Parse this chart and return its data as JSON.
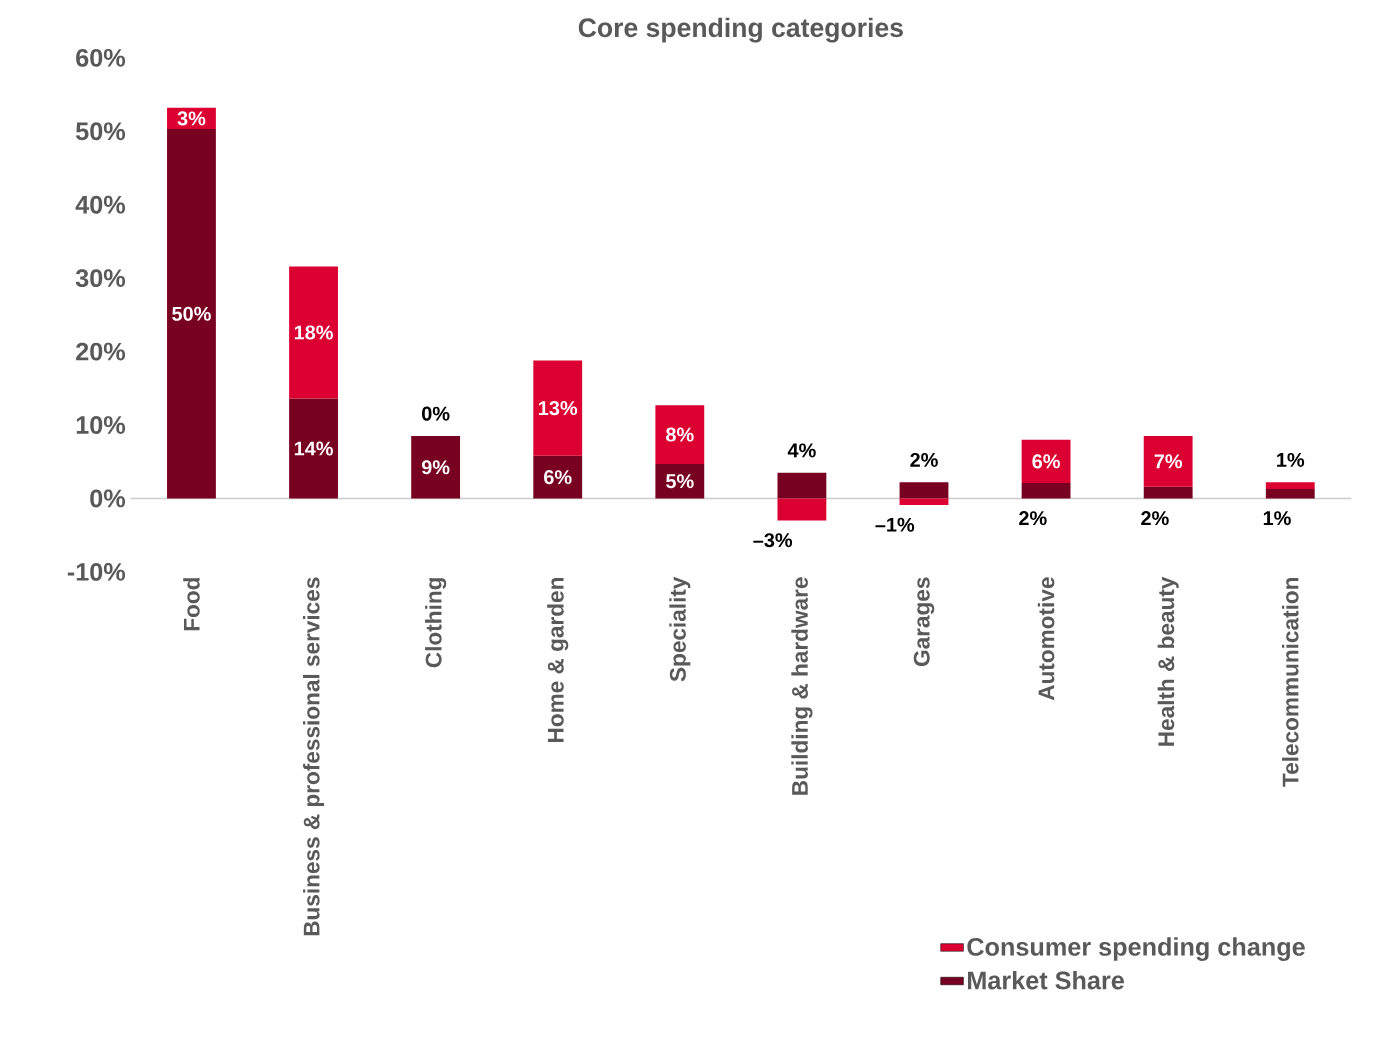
{
  "chart_data": {
    "type": "bar",
    "stacked": true,
    "title": "Core spending categories",
    "categories": [
      "Food",
      "Business & professional services",
      "Clothing",
      "Home & garden",
      "Speciality",
      "Building & hardware",
      "Garages",
      "Automotive",
      "Health & beauty",
      "Telecommunication"
    ],
    "series": [
      {
        "name": "Market Share",
        "color": "#780020",
        "values": [
          50.3,
          13.6,
          8.5,
          5.8,
          4.7,
          3.5,
          2.2,
          2.1,
          1.6,
          1.3
        ],
        "value_labels": [
          "50%",
          "14%",
          "9%",
          "6%",
          "5%",
          "4%",
          "2%",
          "2%",
          "2%",
          "1%"
        ]
      },
      {
        "name": "Consumer spending change",
        "color": "#dc0032",
        "values": [
          2.9,
          18.0,
          0.0,
          13.0,
          8.0,
          -3.0,
          -0.9,
          5.9,
          6.9,
          0.9
        ],
        "value_labels": [
          "3%",
          "18%",
          "0%",
          "13%",
          "8%",
          "–3%",
          "–1%",
          "6%",
          "7%",
          "1%"
        ]
      }
    ],
    "ylim": [
      -10,
      60
    ],
    "yticks": [
      {
        "value": 60,
        "label": "60%"
      },
      {
        "value": 50,
        "label": "50%"
      },
      {
        "value": 40,
        "label": "40%"
      },
      {
        "value": 30,
        "label": "30%"
      },
      {
        "value": 20,
        "label": "20%"
      },
      {
        "value": 10,
        "label": "10%"
      },
      {
        "value": 0,
        "label": "0%"
      },
      {
        "value": -10,
        "label": "-10%"
      }
    ],
    "legend": "bottom right"
  }
}
